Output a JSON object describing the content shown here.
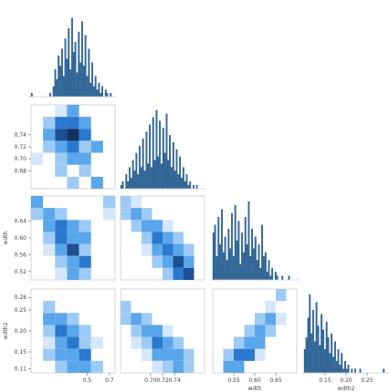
{
  "chart_data": {
    "type": "pairplot",
    "variables": [
      "",
      "",
      "wdth",
      "wdth2"
    ],
    "grid": false,
    "colors": {
      "bar": "#2f6fa6",
      "bar_edge": "#1d3e63",
      "frame": "#cccccc",
      "tick": "#666666"
    },
    "cmap": [
      "#d6e7fb",
      "#9dcbf5",
      "#5aa6ea",
      "#2a78cf",
      "#1d4f93",
      "#12335f"
    ],
    "ranges": [
      [
        0.0,
        0.75
      ],
      [
        0.65,
        0.79
      ],
      [
        0.5,
        0.7
      ],
      [
        0.1,
        0.3
      ]
    ],
    "ticks": [
      [
        {
          "v": 0.5,
          "t": "0.5"
        },
        {
          "v": 0.7,
          "t": "0.7"
        }
      ],
      [
        {
          "v": 0.7,
          "t": "0.70"
        },
        {
          "v": 0.72,
          "t": "0.72"
        },
        {
          "v": 0.74,
          "t": "0.74"
        }
      ],
      [
        {
          "v": 0.55,
          "t": "0.55"
        },
        {
          "v": 0.6,
          "t": "0.60"
        },
        {
          "v": 0.65,
          "t": "0.65"
        }
      ],
      [
        {
          "v": 0.15,
          "t": "0.15"
        },
        {
          "v": 0.2,
          "t": "0.20"
        },
        {
          "v": 0.25,
          "t": "0.25"
        }
      ]
    ],
    "yticks": [
      null,
      [
        {
          "v": 0.74,
          "t": "0.74"
        },
        {
          "v": 0.72,
          "t": "0.72"
        },
        {
          "v": 0.7,
          "t": "0.70"
        },
        {
          "v": 0.68,
          "t": "0.68"
        }
      ],
      [
        {
          "v": 0.64,
          "t": "0.64"
        },
        {
          "v": 0.6,
          "t": "0.60"
        },
        {
          "v": 0.56,
          "t": "0.56"
        },
        {
          "v": 0.52,
          "t": "0.52"
        }
      ],
      [
        {
          "v": 0.28,
          "t": "0.28"
        },
        {
          "v": 0.25,
          "t": "0.25"
        },
        {
          "v": 0.2,
          "t": "0.20"
        },
        {
          "v": 0.15,
          "t": "0.15"
        },
        {
          "v": 0.11,
          "t": "0.11"
        }
      ]
    ],
    "diagonal": [
      {
        "lo": 0.0,
        "hi": 0.75,
        "counts": [
          1,
          0,
          0,
          0,
          0,
          0,
          0,
          0,
          0,
          0,
          0,
          1,
          0,
          3,
          8,
          5,
          12,
          9,
          14,
          6,
          17,
          11,
          20,
          8,
          23,
          13,
          16,
          7,
          19,
          10,
          22,
          9,
          18,
          6,
          14,
          4,
          10,
          3,
          6,
          2,
          4,
          1,
          3,
          0,
          2,
          1,
          0,
          1,
          0,
          0
        ]
      },
      {
        "lo": 0.65,
        "hi": 0.79,
        "counts": [
          1,
          2,
          0,
          4,
          2,
          6,
          3,
          8,
          5,
          10,
          4,
          12,
          6,
          14,
          5,
          16,
          7,
          18,
          6,
          20,
          8,
          22,
          9,
          19,
          7,
          17,
          10,
          21,
          8,
          15,
          6,
          13,
          5,
          11,
          4,
          9,
          3,
          6,
          2,
          4,
          1,
          2,
          0,
          1,
          0,
          1,
          0,
          0,
          0,
          0
        ]
      },
      {
        "lo": 0.5,
        "hi": 0.7,
        "counts": [
          12,
          14,
          6,
          16,
          9,
          18,
          7,
          11,
          5,
          13,
          8,
          17,
          6,
          19,
          10,
          15,
          4,
          12,
          7,
          16,
          9,
          20,
          6,
          13,
          8,
          11,
          5,
          9,
          3,
          14,
          6,
          7,
          2,
          5,
          1,
          3,
          0,
          2,
          1,
          0,
          0,
          1,
          0,
          0,
          0,
          1,
          0,
          0,
          0,
          0
        ]
      },
      {
        "lo": 0.1,
        "hi": 0.3,
        "counts": [
          6,
          9,
          14,
          20,
          10,
          16,
          8,
          18,
          12,
          7,
          15,
          11,
          6,
          13,
          9,
          5,
          10,
          4,
          8,
          3,
          6,
          2,
          5,
          1,
          3,
          1,
          2,
          0,
          1,
          0,
          1,
          0,
          0,
          1,
          0,
          0,
          0,
          0,
          0,
          0,
          0,
          0,
          0,
          0,
          0,
          0,
          0,
          1,
          0,
          0
        ]
      }
    ],
    "heatmaps": [
      {
        "row": 1,
        "col": 0,
        "rows": [
          [
            0,
            0,
            1,
            3,
            0,
            0,
            0
          ],
          [
            0,
            2,
            4,
            4,
            3,
            0,
            0
          ],
          [
            0,
            3,
            5,
            6,
            4,
            0,
            0
          ],
          [
            0,
            2,
            3,
            4,
            2,
            3,
            0
          ],
          [
            1,
            0,
            2,
            3,
            3,
            0,
            0
          ],
          [
            0,
            0,
            2,
            0,
            2,
            0,
            0
          ],
          [
            0,
            0,
            0,
            2,
            0,
            3,
            0
          ]
        ]
      },
      {
        "row": 2,
        "col": 0,
        "rows": [
          [
            3,
            0,
            0,
            0,
            0,
            0,
            2
          ],
          [
            2,
            3,
            2,
            0,
            0,
            0,
            1
          ],
          [
            0,
            3,
            4,
            3,
            2,
            0,
            0
          ],
          [
            0,
            2,
            4,
            3,
            3,
            0,
            0
          ],
          [
            0,
            1,
            3,
            5,
            2,
            0,
            0
          ],
          [
            0,
            0,
            2,
            3,
            4,
            0,
            0
          ],
          [
            0,
            0,
            1,
            3,
            2,
            0,
            0
          ]
        ]
      },
      {
        "row": 2,
        "col": 1,
        "rows": [
          [
            2,
            1,
            0,
            0,
            0,
            0,
            0,
            0
          ],
          [
            2,
            3,
            2,
            0,
            0,
            0,
            0,
            0
          ],
          [
            0,
            2,
            3,
            3,
            1,
            0,
            0,
            0
          ],
          [
            0,
            0,
            2,
            4,
            3,
            2,
            0,
            0
          ],
          [
            0,
            0,
            1,
            3,
            4,
            3,
            2,
            0
          ],
          [
            0,
            0,
            0,
            2,
            3,
            5,
            3,
            0
          ],
          [
            0,
            0,
            0,
            0,
            2,
            4,
            5,
            0
          ]
        ]
      },
      {
        "row": 3,
        "col": 0,
        "rows": [
          [
            0,
            0,
            0,
            0,
            0,
            0,
            0
          ],
          [
            0,
            2,
            0,
            0,
            0,
            0,
            0
          ],
          [
            0,
            3,
            3,
            2,
            0,
            0,
            0
          ],
          [
            0,
            2,
            4,
            3,
            2,
            0,
            0
          ],
          [
            0,
            1,
            3,
            4,
            2,
            1,
            0
          ],
          [
            0,
            2,
            3,
            3,
            4,
            0,
            0
          ],
          [
            0,
            0,
            2,
            3,
            3,
            2,
            0
          ]
        ]
      },
      {
        "row": 3,
        "col": 1,
        "rows": [
          [
            0,
            0,
            0,
            0,
            0,
            0,
            0,
            0
          ],
          [
            2,
            0,
            0,
            0,
            0,
            0,
            0,
            0
          ],
          [
            2,
            3,
            2,
            0,
            0,
            0,
            0,
            0
          ],
          [
            0,
            2,
            3,
            3,
            1,
            0,
            0,
            0
          ],
          [
            0,
            1,
            2,
            4,
            3,
            2,
            0,
            0
          ],
          [
            0,
            0,
            1,
            3,
            3,
            3,
            2,
            0
          ],
          [
            0,
            0,
            0,
            1,
            2,
            3,
            2,
            0
          ]
        ]
      },
      {
        "row": 3,
        "col": 2,
        "rows": [
          [
            0,
            0,
            0,
            0,
            0,
            0,
            2,
            0
          ],
          [
            0,
            0,
            0,
            0,
            0,
            1,
            0,
            0
          ],
          [
            0,
            0,
            0,
            0,
            2,
            3,
            1,
            0
          ],
          [
            0,
            0,
            0,
            2,
            3,
            2,
            0,
            0
          ],
          [
            0,
            0,
            2,
            3,
            3,
            0,
            0,
            0
          ],
          [
            0,
            2,
            4,
            4,
            1,
            0,
            0,
            0
          ],
          [
            0,
            3,
            3,
            0,
            0,
            0,
            0,
            0
          ]
        ]
      }
    ]
  }
}
